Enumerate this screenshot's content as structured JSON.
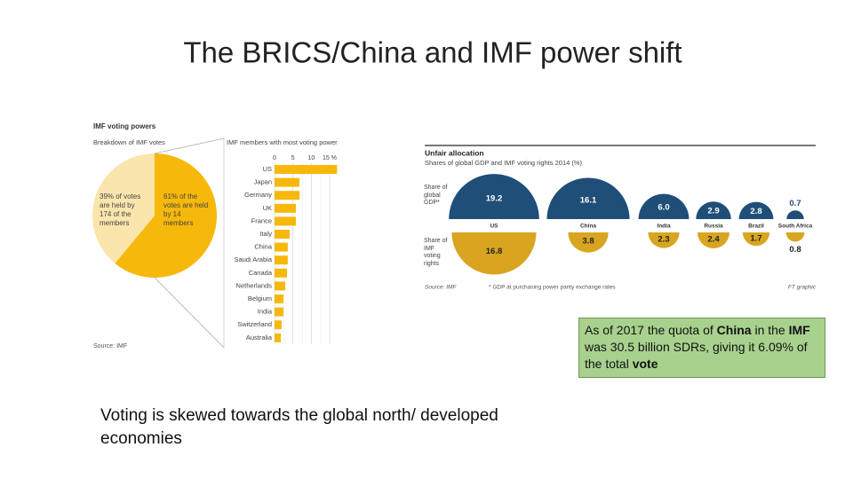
{
  "slide_title": "The BRICS/China and IMF power shift",
  "callout": [
    {
      "text": "As of 2017 the quota of ",
      "bold": false
    },
    {
      "text": "China",
      "bold": true
    },
    {
      "text": " in the ",
      "bold": false
    },
    {
      "text": "IMF",
      "bold": true
    },
    {
      "text": " was 30.5 billion SDRs, giving it 6.09% of the total ",
      "bold": false
    },
    {
      "text": "vote",
      "bold": true
    }
  ],
  "bottom_text": "Voting is skewed towards the global north/ developed economies",
  "chart_data": [
    {
      "type": "pie",
      "title": "IMF voting powers",
      "subtitle": "Breakdown of IMF votes",
      "labels": [
        "39% of votes are held by 174 of the members",
        "61% of the votes are held by 14 members"
      ],
      "values": [
        39,
        61
      ],
      "colors": [
        "#fae5ad",
        "#f6b80a"
      ],
      "source": "Source: IMF"
    },
    {
      "type": "bar",
      "orientation": "horizontal",
      "title": "IMF members with most voting power",
      "categories": [
        "US",
        "Japan",
        "Germany",
        "UK",
        "France",
        "Italy",
        "China",
        "Saudi Arabia",
        "Canada",
        "Netherlands",
        "Belgium",
        "India",
        "Switzerland",
        "Australia"
      ],
      "values": [
        17,
        6.8,
        6.8,
        5.8,
        5.8,
        4.1,
        3.6,
        3.6,
        3.4,
        2.9,
        2.4,
        2.4,
        1.9,
        1.7
      ],
      "color": "#f6b80a",
      "xlim": [
        0,
        20
      ],
      "xticks": [
        0,
        5,
        10,
        {
          "value": 15,
          "label": "15 %"
        }
      ],
      "grid": true
    },
    {
      "type": "semicircle",
      "title": "Unfair allocation",
      "subtitle": "Shares of global GDP and IMF voting rights 2014 (%)",
      "categories": [
        "US",
        "China",
        "India",
        "Russia",
        "Brazil",
        "South Africa"
      ],
      "series": [
        {
          "name": "Share of global GDP*",
          "color": "#1f4e79",
          "values": [
            19.2,
            16.1,
            6.0,
            2.9,
            2.8,
            0.7
          ],
          "value_labels": [
            "19.2",
            "16.1",
            "6.0",
            "2.9",
            "2.8",
            "0.7"
          ]
        },
        {
          "name": "Share of IMF voting rights",
          "color": "#d9a520",
          "values": [
            16.8,
            3.8,
            2.3,
            2.4,
            1.7,
            0.8
          ]
        }
      ],
      "source": "Source: IMF",
      "footnote": "* GDP at purchasing power parity exchange rates",
      "credit": "FT graphic"
    }
  ]
}
